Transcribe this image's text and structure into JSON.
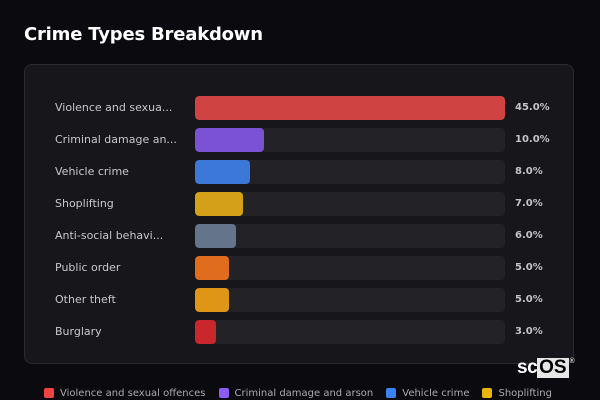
{
  "header": {
    "title": "Crime Types Breakdown"
  },
  "chart_data": {
    "type": "bar",
    "orientation": "horizontal",
    "title": "Crime Types Breakdown",
    "xlabel": "",
    "ylabel": "",
    "scale_max": 45,
    "categories": [
      "Violence and sexual offences",
      "Criminal damage and arson",
      "Vehicle crime",
      "Shoplifting",
      "Anti-social behaviour",
      "Public order",
      "Other theft",
      "Burglary"
    ],
    "display_labels": [
      "Violence and sexua...",
      "Criminal damage an...",
      "Vehicle crime",
      "Shoplifting",
      "Anti-social behavi...",
      "Public order",
      "Other theft",
      "Burglary"
    ],
    "values": [
      45.0,
      10.0,
      8.0,
      7.0,
      6.0,
      5.0,
      5.0,
      3.0
    ],
    "value_labels": [
      "45.0%",
      "10.0%",
      "8.0%",
      "7.0%",
      "6.0%",
      "5.0%",
      "5.0%",
      "3.0%"
    ],
    "colors": [
      "#d04343",
      "#7b52d3",
      "#3c78d8",
      "#d4a017",
      "#64748b",
      "#e06c1e",
      "#df9516",
      "#c8282c"
    ],
    "legend": {
      "position": "bottom",
      "entries": [
        {
          "label": "Violence and sexual offences",
          "color": "#ef4444"
        },
        {
          "label": "Criminal damage and arson",
          "color": "#8b5cf6"
        },
        {
          "label": "Vehicle crime",
          "color": "#3b82f6"
        },
        {
          "label": "Shoplifting",
          "color": "#eab308"
        }
      ]
    }
  },
  "brand": {
    "sc": "sc",
    "os": "OS",
    "reg": "®"
  }
}
